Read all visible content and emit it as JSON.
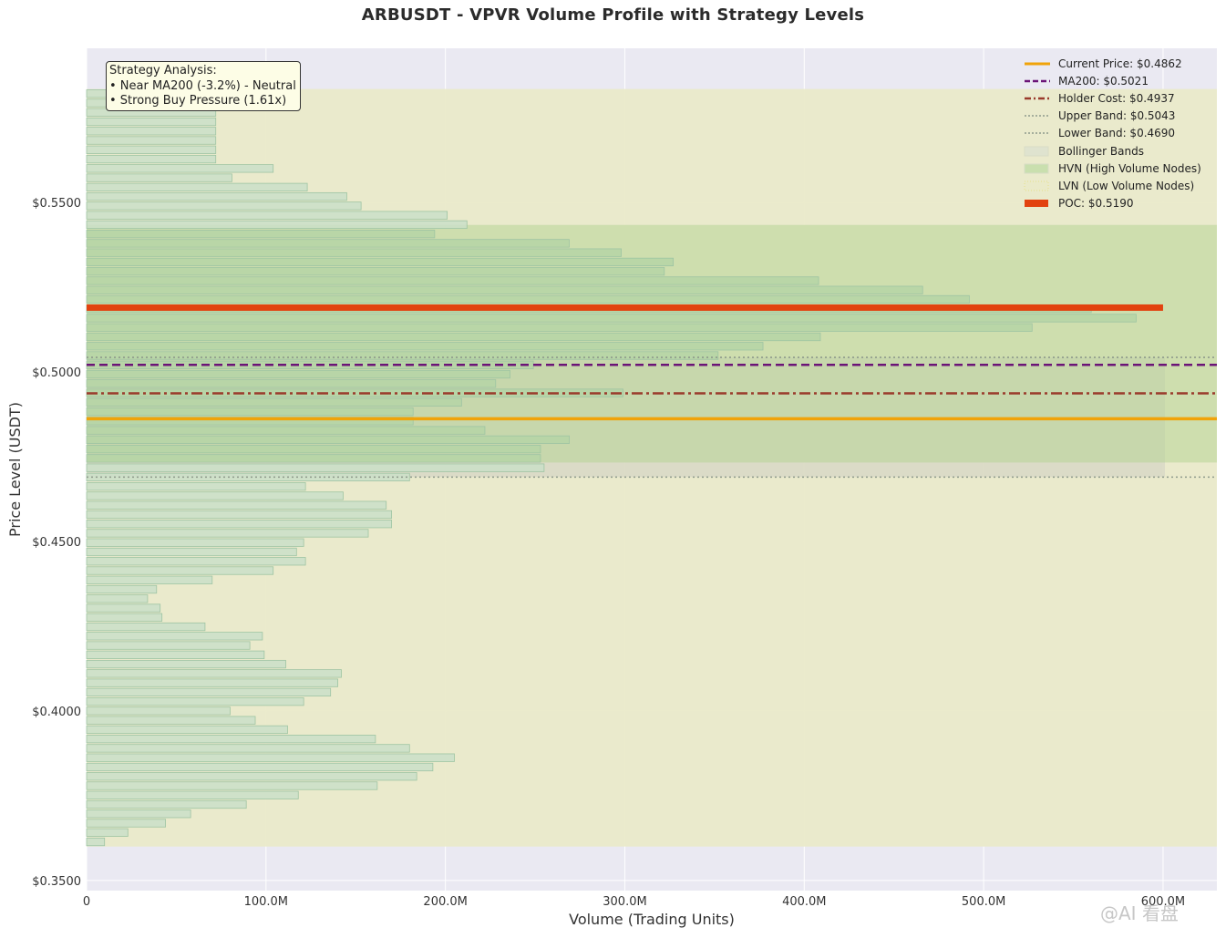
{
  "chart_data": {
    "type": "bar",
    "orientation": "horizontal",
    "title": "ARBUSDT - VPVR Volume Profile with Strategy Levels",
    "xlabel": "Volume (Trading Units)",
    "ylabel": "Price Level (USDT)",
    "xlim": [
      0,
      630
    ],
    "ylim": [
      0.347,
      0.5955
    ],
    "x_ticks": [
      {
        "value": 0,
        "label": "0"
      },
      {
        "value": 100,
        "label": "100.0M"
      },
      {
        "value": 200,
        "label": "200.0M"
      },
      {
        "value": 300,
        "label": "300.0M"
      },
      {
        "value": 400,
        "label": "400.0M"
      },
      {
        "value": 500,
        "label": "500.0M"
      },
      {
        "value": 600,
        "label": "600.0M"
      }
    ],
    "y_ticks": [
      {
        "value": 0.35,
        "label": "$0.3500"
      },
      {
        "value": 0.4,
        "label": "$0.4000"
      },
      {
        "value": 0.45,
        "label": "$0.4500"
      },
      {
        "value": 0.5,
        "label": "$0.5000"
      },
      {
        "value": 0.55,
        "label": "$0.5500"
      }
    ],
    "bins": {
      "price_low": 0.36,
      "price_high": 0.5835,
      "volumes_millions": [
        10,
        23,
        44,
        58,
        89,
        118,
        162,
        184,
        193,
        205,
        180,
        161,
        112,
        94,
        80,
        121,
        136,
        140,
        142,
        111,
        99,
        91,
        98,
        66,
        42,
        41,
        34,
        39,
        70,
        104,
        122,
        117,
        121,
        157,
        170,
        170,
        167,
        143,
        122,
        180,
        255,
        253,
        253,
        269,
        222,
        182,
        182,
        209,
        299,
        228,
        236,
        249,
        352,
        377,
        409,
        527,
        585,
        560,
        492,
        466,
        408,
        322,
        327,
        298,
        269,
        194,
        212,
        201,
        153,
        145,
        123,
        81,
        104,
        72,
        72,
        72,
        72,
        72,
        72,
        72,
        72
      ]
    },
    "hvn_zone": [
      0.4733,
      0.5434
    ],
    "bollinger_band": [
      0.469,
      0.5043
    ],
    "lvn_zone": [
      0.36,
      0.5835
    ],
    "lines": {
      "current_price": 0.4862,
      "ma200": 0.5021,
      "holder_cost": 0.4937,
      "upper_band": 0.5043,
      "lower_band": 0.469,
      "poc": 0.519,
      "poc_volume": 600
    },
    "colors": {
      "plot_bg": "#eae9f2",
      "lvn_fill": "#eaeac9",
      "hvn_fill": "#cde0b0",
      "bar_fill": "#cadfc8",
      "bar_fill_hvn": "#b5d5a6",
      "bar_edge": "#9ec4a3",
      "current_price": "#f0a30a",
      "ma200": "#6b1477",
      "holder_cost": "#9a3a2b",
      "band": "#8e9a8c",
      "poc": "#e2420f"
    }
  },
  "annotation": {
    "lines": [
      "Strategy Analysis:",
      "• Near MA200 (-3.2%) - Neutral",
      "• Strong Buy Pressure (1.61x)"
    ]
  },
  "legend": [
    {
      "label": "Current Price: $0.4862",
      "style": "solid",
      "color": "#f0a30a"
    },
    {
      "label": "MA200: $0.5021",
      "style": "dashed",
      "color": "#6b1477"
    },
    {
      "label": "Holder Cost: $0.4937",
      "style": "dashdot",
      "color": "#9a3a2b"
    },
    {
      "label": "Upper Band: $0.5043",
      "style": "dotted",
      "color": "#8e9a8c"
    },
    {
      "label": "Lower Band: $0.4690",
      "style": "dotted",
      "color": "#8e9a8c"
    },
    {
      "label": "Bollinger Bands",
      "style": "patch",
      "color": "#dfe3cf"
    },
    {
      "label": "HVN (High Volume Nodes)",
      "style": "patch",
      "color": "#c9dfae"
    },
    {
      "label": "LVN (Low Volume Nodes)",
      "style": "hatch",
      "color": "#eaeac9"
    },
    {
      "label": "POC: $0.5190",
      "style": "poc",
      "color": "#e2420f"
    }
  ],
  "watermark": "@AI 看盘"
}
